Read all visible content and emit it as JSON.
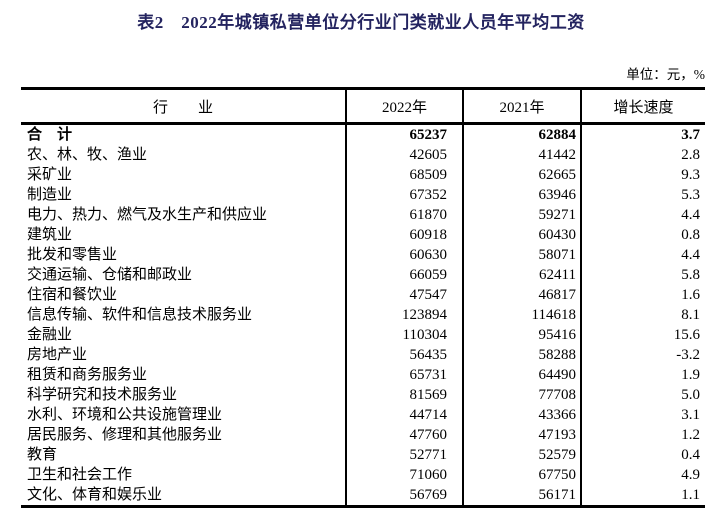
{
  "title": "表2　2022年城镇私营单位分行业门类就业人员年平均工资",
  "unit_note": "单位：元，%",
  "colors": {
    "title_text": "#23235f",
    "body_text": "#000000",
    "border": "#000000",
    "background": "#ffffff"
  },
  "table": {
    "columns": [
      {
        "key": "industry",
        "label": "行　　业"
      },
      {
        "key": "y2022",
        "label": "2022年"
      },
      {
        "key": "y2021",
        "label": "2021年"
      },
      {
        "key": "growth",
        "label": "增长速度"
      }
    ],
    "rows": [
      {
        "industry": "合　计",
        "y2022": "65237",
        "y2021": "62884",
        "growth": "3.7",
        "bold": true
      },
      {
        "industry": "农、林、牧、渔业",
        "y2022": "42605",
        "y2021": "41442",
        "growth": "2.8",
        "bold": false
      },
      {
        "industry": "采矿业",
        "y2022": "68509",
        "y2021": "62665",
        "growth": "9.3",
        "bold": false
      },
      {
        "industry": "制造业",
        "y2022": "67352",
        "y2021": "63946",
        "growth": "5.3",
        "bold": false
      },
      {
        "industry": "电力、热力、燃气及水生产和供应业",
        "y2022": "61870",
        "y2021": "59271",
        "growth": "4.4",
        "bold": false
      },
      {
        "industry": "建筑业",
        "y2022": "60918",
        "y2021": "60430",
        "growth": "0.8",
        "bold": false
      },
      {
        "industry": "批发和零售业",
        "y2022": "60630",
        "y2021": "58071",
        "growth": "4.4",
        "bold": false
      },
      {
        "industry": "交通运输、仓储和邮政业",
        "y2022": "66059",
        "y2021": "62411",
        "growth": "5.8",
        "bold": false
      },
      {
        "industry": "住宿和餐饮业",
        "y2022": "47547",
        "y2021": "46817",
        "growth": "1.6",
        "bold": false
      },
      {
        "industry": "信息传输、软件和信息技术服务业",
        "y2022": "123894",
        "y2021": "114618",
        "growth": "8.1",
        "bold": false
      },
      {
        "industry": "金融业",
        "y2022": "110304",
        "y2021": "95416",
        "growth": "15.6",
        "bold": false
      },
      {
        "industry": "房地产业",
        "y2022": "56435",
        "y2021": "58288",
        "growth": "-3.2",
        "bold": false
      },
      {
        "industry": "租赁和商务服务业",
        "y2022": "65731",
        "y2021": "64490",
        "growth": "1.9",
        "bold": false
      },
      {
        "industry": "科学研究和技术服务业",
        "y2022": "81569",
        "y2021": "77708",
        "growth": "5.0",
        "bold": false
      },
      {
        "industry": "水利、环境和公共设施管理业",
        "y2022": "44714",
        "y2021": "43366",
        "growth": "3.1",
        "bold": false
      },
      {
        "industry": "居民服务、修理和其他服务业",
        "y2022": "47760",
        "y2021": "47193",
        "growth": "1.2",
        "bold": false
      },
      {
        "industry": "教育",
        "y2022": "52771",
        "y2021": "52579",
        "growth": "0.4",
        "bold": false
      },
      {
        "industry": "卫生和社会工作",
        "y2022": "71060",
        "y2021": "67750",
        "growth": "4.9",
        "bold": false
      },
      {
        "industry": "文化、体育和娱乐业",
        "y2022": "56769",
        "y2021": "56171",
        "growth": "1.1",
        "bold": false
      }
    ]
  }
}
